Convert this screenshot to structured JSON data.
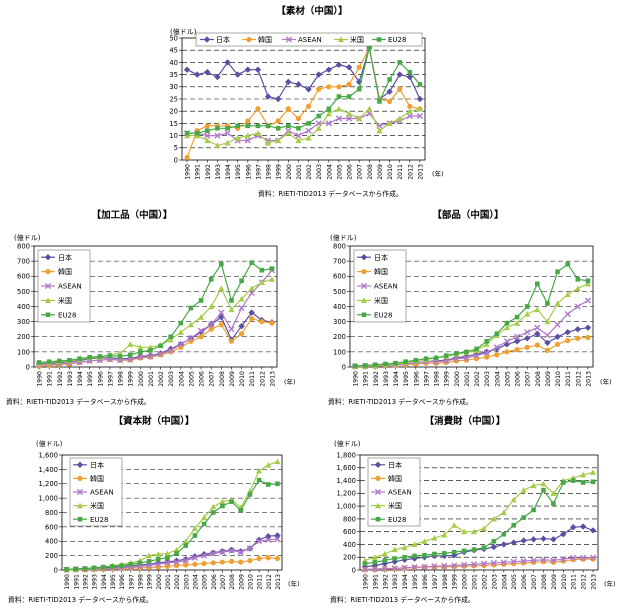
{
  "common": {
    "year_unit": "(年)",
    "source": "資料：RIETI-TID2013 データベースから作成。",
    "years": [
      "1990",
      "1991",
      "1992",
      "1993",
      "1994",
      "1995",
      "1996",
      "1997",
      "1998",
      "1999",
      "2000",
      "2001",
      "2002",
      "2003",
      "2004",
      "2005",
      "2006",
      "2007",
      "2008",
      "2009",
      "2010",
      "2011",
      "2012",
      "2013"
    ]
  },
  "colors": {
    "日本": "#5b4fa3",
    "韓国": "#f0a030",
    "ASEAN": "#b07ac8",
    "米国": "#a4cc48",
    "EU28": "#46a846"
  },
  "chart_data": [
    {
      "type": "line",
      "title": "【素材（中国）】",
      "ylabel": "(億ドル)",
      "ylim": [
        0,
        50
      ],
      "yticks": [
        0,
        5,
        10,
        15,
        20,
        25,
        30,
        35,
        40,
        45,
        50
      ],
      "grid": true,
      "legend_position": "top",
      "series": [
        {
          "name": "日本",
          "values": [
            37,
            35,
            36,
            34,
            40,
            35,
            37,
            37,
            26,
            25,
            32,
            31,
            29,
            35,
            37,
            39,
            38,
            32,
            46,
            25,
            28,
            35,
            34,
            25
          ]
        },
        {
          "name": "韓国",
          "values": [
            1,
            12,
            14,
            14,
            14,
            13,
            16,
            21,
            14,
            16,
            21,
            17,
            22,
            29,
            30,
            30,
            31,
            38,
            46,
            25,
            24,
            29,
            22,
            21
          ]
        },
        {
          "name": "ASEAN",
          "values": [
            11,
            11,
            10,
            10,
            11,
            8,
            8,
            10,
            8,
            8,
            12,
            10,
            12,
            15,
            15,
            17,
            17,
            17,
            19,
            14,
            15,
            16,
            18,
            18
          ]
        },
        {
          "name": "米国",
          "values": [
            10,
            10,
            8,
            6,
            7,
            9,
            10,
            11,
            7,
            8,
            11,
            8,
            9,
            13,
            19,
            21,
            19,
            17,
            21,
            12,
            15,
            17,
            20,
            21
          ]
        },
        {
          "name": "EU28",
          "values": [
            11,
            11,
            12,
            13,
            13,
            14,
            14,
            14,
            14,
            13,
            14,
            13,
            15,
            18,
            21,
            26,
            26,
            29,
            46,
            24,
            33,
            40,
            36,
            31
          ]
        }
      ]
    },
    {
      "type": "line",
      "title": "【加工品（中国）】",
      "ylabel": "(億ドル)",
      "ylim": [
        0,
        800
      ],
      "yticks": [
        0,
        100,
        200,
        300,
        400,
        500,
        600,
        700,
        800
      ],
      "grid": true,
      "legend_position": "top-left",
      "series": [
        {
          "name": "日本",
          "values": [
            20,
            25,
            30,
            35,
            42,
            55,
            60,
            60,
            55,
            55,
            70,
            75,
            90,
            120,
            150,
            190,
            230,
            280,
            330,
            180,
            270,
            360,
            310,
            295
          ]
        },
        {
          "name": "韓国",
          "values": [
            5,
            10,
            15,
            20,
            30,
            40,
            45,
            50,
            45,
            45,
            60,
            65,
            80,
            100,
            130,
            170,
            200,
            250,
            280,
            170,
            220,
            320,
            300,
            290
          ]
        },
        {
          "name": "ASEAN",
          "values": [
            15,
            18,
            22,
            25,
            30,
            40,
            45,
            50,
            45,
            50,
            65,
            70,
            85,
            110,
            150,
            190,
            240,
            280,
            360,
            250,
            390,
            490,
            560,
            640
          ]
        },
        {
          "name": "米国",
          "values": [
            25,
            30,
            35,
            40,
            50,
            60,
            65,
            80,
            90,
            150,
            130,
            130,
            145,
            180,
            230,
            280,
            330,
            400,
            520,
            380,
            450,
            520,
            560,
            580
          ]
        },
        {
          "name": "EU28",
          "values": [
            30,
            35,
            40,
            45,
            55,
            65,
            70,
            75,
            70,
            80,
            100,
            110,
            140,
            200,
            290,
            390,
            440,
            580,
            680,
            440,
            570,
            690,
            640,
            650
          ]
        }
      ]
    },
    {
      "type": "line",
      "title": "【部品（中国）】",
      "ylabel": "(億ドル)",
      "ylim": [
        0,
        800
      ],
      "yticks": [
        0,
        100,
        200,
        300,
        400,
        500,
        600,
        700,
        800
      ],
      "grid": true,
      "legend_position": "top-left",
      "series": [
        {
          "name": "日本",
          "values": [
            3,
            5,
            8,
            10,
            15,
            20,
            30,
            35,
            40,
            45,
            60,
            70,
            85,
            100,
            120,
            150,
            170,
            190,
            220,
            160,
            200,
            230,
            250,
            260
          ]
        },
        {
          "name": "韓国",
          "values": [
            2,
            3,
            5,
            8,
            12,
            15,
            20,
            25,
            25,
            30,
            40,
            45,
            55,
            65,
            80,
            100,
            115,
            130,
            145,
            110,
            150,
            175,
            190,
            195
          ]
        },
        {
          "name": "ASEAN",
          "values": [
            3,
            5,
            8,
            10,
            15,
            20,
            30,
            35,
            35,
            40,
            55,
            60,
            75,
            95,
            130,
            170,
            200,
            230,
            260,
            210,
            280,
            350,
            400,
            440
          ]
        },
        {
          "name": "米国",
          "values": [
            5,
            8,
            10,
            15,
            20,
            30,
            40,
            50,
            60,
            70,
            85,
            95,
            110,
            150,
            210,
            260,
            290,
            350,
            380,
            300,
            420,
            480,
            520,
            550
          ]
        },
        {
          "name": "EU28",
          "values": [
            8,
            10,
            15,
            20,
            25,
            35,
            45,
            55,
            60,
            75,
            90,
            100,
            120,
            170,
            220,
            290,
            330,
            400,
            550,
            420,
            630,
            680,
            580,
            570
          ]
        }
      ]
    },
    {
      "type": "line",
      "title": "【資本財（中国）】",
      "ylabel": "(億ドル)",
      "ylim": [
        0,
        1600
      ],
      "yticks": [
        0,
        200,
        400,
        600,
        800,
        1000,
        1200,
        1400,
        1600
      ],
      "grid": true,
      "legend_position": "top-left",
      "series": [
        {
          "name": "日本",
          "values": [
            5,
            10,
            15,
            20,
            30,
            40,
            50,
            60,
            70,
            80,
            100,
            110,
            130,
            150,
            190,
            220,
            240,
            260,
            280,
            260,
            300,
            420,
            470,
            480
          ]
        },
        {
          "name": "韓国",
          "values": [
            2,
            3,
            5,
            8,
            10,
            15,
            20,
            25,
            30,
            35,
            40,
            50,
            60,
            70,
            80,
            90,
            100,
            110,
            120,
            110,
            130,
            160,
            170,
            160
          ]
        },
        {
          "name": "ASEAN",
          "values": [
            5,
            8,
            10,
            15,
            20,
            25,
            30,
            40,
            50,
            60,
            80,
            100,
            110,
            130,
            170,
            200,
            230,
            250,
            270,
            250,
            300,
            400,
            420,
            430
          ]
        },
        {
          "name": "米国",
          "values": [
            5,
            10,
            20,
            30,
            40,
            60,
            80,
            100,
            130,
            200,
            220,
            230,
            280,
            400,
            580,
            730,
            880,
            950,
            980,
            870,
            1100,
            1380,
            1460,
            1510
          ]
        },
        {
          "name": "EU28",
          "values": [
            10,
            15,
            20,
            30,
            40,
            50,
            60,
            80,
            100,
            120,
            150,
            170,
            230,
            340,
            480,
            640,
            800,
            890,
            950,
            830,
            1050,
            1250,
            1190,
            1200
          ]
        }
      ]
    },
    {
      "type": "line",
      "title": "【消費財（中国）】",
      "ylabel": "(億ドル)",
      "ylim": [
        0,
        1800
      ],
      "yticks": [
        0,
        200,
        400,
        600,
        800,
        1000,
        1200,
        1400,
        1600,
        1800
      ],
      "grid": true,
      "legend_position": "top-left",
      "series": [
        {
          "name": "日本",
          "values": [
            50,
            70,
            100,
            130,
            160,
            180,
            200,
            220,
            220,
            230,
            280,
            310,
            330,
            360,
            400,
            430,
            460,
            480,
            490,
            480,
            560,
            670,
            680,
            620
          ]
        },
        {
          "name": "韓国",
          "values": [
            5,
            10,
            15,
            20,
            30,
            40,
            45,
            50,
            50,
            55,
            60,
            65,
            70,
            80,
            90,
            100,
            110,
            120,
            130,
            120,
            140,
            160,
            170,
            170
          ]
        },
        {
          "name": "ASEAN",
          "values": [
            10,
            15,
            20,
            25,
            35,
            45,
            50,
            60,
            65,
            70,
            80,
            90,
            100,
            110,
            120,
            130,
            140,
            150,
            160,
            150,
            170,
            190,
            190,
            195
          ]
        },
        {
          "name": "米国",
          "values": [
            150,
            200,
            250,
            320,
            350,
            400,
            450,
            500,
            550,
            700,
            600,
            600,
            650,
            800,
            900,
            1100,
            1250,
            1320,
            1350,
            1200,
            1400,
            1440,
            1490,
            1530
          ]
        },
        {
          "name": "EU28",
          "values": [
            100,
            120,
            150,
            180,
            200,
            220,
            230,
            250,
            260,
            280,
            300,
            320,
            350,
            450,
            560,
            700,
            820,
            940,
            1250,
            1040,
            1370,
            1400,
            1370,
            1380
          ]
        }
      ]
    }
  ]
}
